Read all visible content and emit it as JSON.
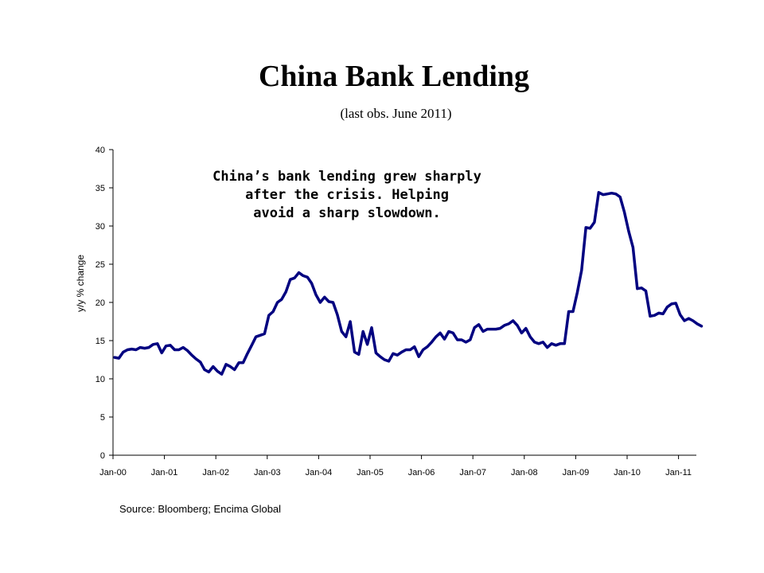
{
  "title": "China Bank Lending",
  "subtitle": "(last obs. June 2011)",
  "source": "Source: Bloomberg; Encima Global",
  "chart_data": {
    "type": "line",
    "title": "China Bank Lending",
    "subtitle": "(last obs. June 2011)",
    "xlabel": "",
    "ylabel": "y/y % change",
    "ylim": [
      0,
      40
    ],
    "yticks": [
      0,
      5,
      10,
      15,
      20,
      25,
      30,
      35,
      40
    ],
    "xticks": [
      "Jan-00",
      "Jan-01",
      "Jan-02",
      "Jan-03",
      "Jan-04",
      "Jan-05",
      "Jan-06",
      "Jan-07",
      "Jan-08",
      "Jan-09",
      "Jan-10",
      "Jan-11"
    ],
    "x_start": "Jan-00",
    "x_end": "Jun-11",
    "grid": false,
    "legend": "none",
    "line_color": "#000080",
    "annotation": "China’s bank lending grew sharply after the crisis. Helping avoid a sharp slowdown.",
    "series": [
      {
        "values": [
          12.8,
          12.7,
          13.5,
          13.8,
          13.9,
          13.8,
          14.1,
          14.0,
          14.1,
          14.5,
          14.6,
          13.4,
          14.3,
          14.4,
          13.8,
          13.8,
          14.1,
          13.7,
          13.1,
          12.6,
          12.2,
          11.2,
          10.9,
          11.6,
          11.0,
          10.6,
          11.9,
          11.6,
          11.2,
          12.1,
          12.1,
          13.3,
          14.4,
          15.5,
          15.7,
          15.9,
          18.3,
          18.8,
          20.0,
          20.4,
          21.4,
          23.0,
          23.2,
          23.9,
          23.5,
          23.3,
          22.5,
          21.0,
          20.0,
          20.7,
          20.1,
          20.0,
          18.4,
          16.2,
          15.5,
          17.5,
          13.5,
          13.2,
          16.2,
          14.5,
          16.7,
          13.4,
          12.9,
          12.5,
          12.3,
          13.3,
          13.1,
          13.5,
          13.8,
          13.8,
          14.2,
          12.9,
          13.8,
          14.2,
          14.8,
          15.5,
          16.0,
          15.2,
          16.2,
          16.0,
          15.1,
          15.1,
          14.8,
          15.1,
          16.7,
          17.1,
          16.2,
          16.5,
          16.5,
          16.5,
          16.6,
          17.0,
          17.2,
          17.6,
          17.0,
          16.0,
          16.6,
          15.5,
          14.8,
          14.6,
          14.8,
          14.1,
          14.6,
          14.4,
          14.6,
          14.6,
          18.8,
          18.8,
          21.3,
          24.2,
          29.8,
          29.7,
          30.5,
          34.4,
          34.1,
          34.2,
          34.3,
          34.2,
          33.8,
          31.8,
          29.3,
          27.2,
          21.8,
          21.9,
          21.5,
          18.2,
          18.3,
          18.6,
          18.5,
          19.4,
          19.8,
          19.9,
          18.4,
          17.6,
          17.9,
          17.6,
          17.2,
          16.9
        ]
      }
    ]
  }
}
